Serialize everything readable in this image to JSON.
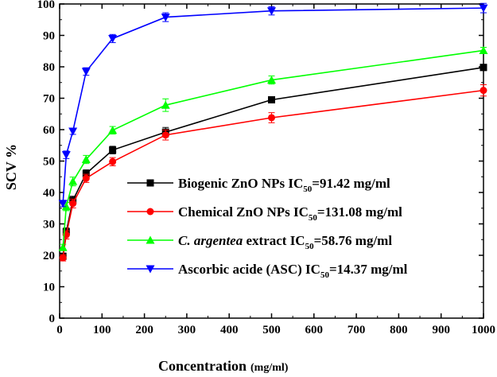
{
  "chart_data": {
    "type": "line",
    "xlabel": "Concentration",
    "xlabel_unit": "(mg/ml)",
    "ylabel": "SCV %",
    "xlim": [
      0,
      1000
    ],
    "ylim": [
      0,
      100
    ],
    "xticks": [
      0,
      100,
      200,
      300,
      400,
      500,
      600,
      700,
      800,
      900,
      1000
    ],
    "yticks": [
      0,
      10,
      20,
      30,
      40,
      50,
      60,
      70,
      80,
      90,
      100
    ],
    "grid": false,
    "legend_position": "center-right",
    "x": [
      7.8,
      15.6,
      31.25,
      62.5,
      125,
      250,
      500,
      1000
    ],
    "series": [
      {
        "name": "Biogenic ZnO NPs IC50=91.42 mg/ml",
        "label_main": "Biogenic ZnO NPs IC",
        "label_sub": "50",
        "label_tail": "=91.42 mg/ml",
        "italic_prefix": "",
        "color": "#000000",
        "marker": "square",
        "values": [
          19.7,
          27.5,
          37.5,
          46.0,
          53.5,
          59.2,
          69.5,
          79.8
        ],
        "errors": [
          1.0,
          1.2,
          1.3,
          1.2,
          1.2,
          1.5,
          1.0,
          1.0
        ]
      },
      {
        "name": "Chemical ZnO NPs IC50=131.08 mg/ml",
        "label_main": "Chemical ZnO NPs IC",
        "label_sub": "50",
        "label_tail": "=131.08 mg/ml",
        "italic_prefix": "",
        "color": "#ff0000",
        "marker": "circle",
        "values": [
          19.2,
          26.5,
          36.5,
          44.5,
          49.8,
          58.3,
          63.8,
          72.5
        ],
        "errors": [
          1.0,
          1.3,
          1.4,
          1.3,
          1.3,
          1.6,
          1.6,
          1.8
        ]
      },
      {
        "name": "C. argentea extract IC50=58.76 mg/ml",
        "label_main": " extract IC",
        "label_sub": "50",
        "label_tail": "=58.76 mg/ml",
        "italic_prefix": "C. argentea",
        "color": "#00ff00",
        "marker": "triangle-up",
        "values": [
          22.5,
          35.5,
          43.5,
          50.5,
          59.8,
          67.8,
          75.8,
          85.2
        ],
        "errors": [
          1.0,
          1.3,
          1.4,
          1.3,
          1.2,
          2.0,
          1.3,
          1.0
        ]
      },
      {
        "name": "Ascorbic acide (ASC) IC50=14.37 mg/ml",
        "label_main": "Ascorbic acide (ASC) IC",
        "label_sub": "50",
        "label_tail": "=14.37 mg/ml",
        "italic_prefix": "",
        "color": "#0000ff",
        "marker": "triangle-down",
        "values": [
          36.5,
          52.0,
          59.5,
          78.5,
          89.0,
          95.8,
          97.8,
          98.7
        ],
        "errors": [
          1.0,
          1.2,
          1.0,
          1.2,
          1.3,
          1.4,
          1.3,
          1.5
        ]
      }
    ]
  }
}
